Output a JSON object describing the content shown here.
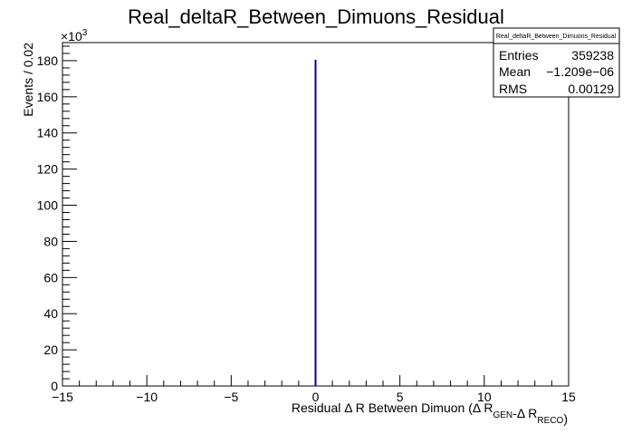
{
  "chart_data": {
    "type": "bar",
    "title": "Real_deltaR_Between_Dimuons_Residual",
    "xlabel": {
      "parts": [
        {
          "t": "Residual ",
          "s": "n"
        },
        {
          "t": "Δ",
          "s": "n"
        },
        {
          "t": " R Between Dimuon (",
          "s": "n"
        },
        {
          "t": "Δ",
          "s": "n"
        },
        {
          "t": " R",
          "s": "n"
        },
        {
          "t": "GEN",
          "s": "sub"
        },
        {
          "t": "-",
          "s": "n"
        },
        {
          "t": "Δ",
          "s": "n"
        },
        {
          "t": " R",
          "s": "n"
        },
        {
          "t": "RECO",
          "s": "sub"
        },
        {
          "t": ")",
          "s": "n"
        }
      ]
    },
    "ylabel": "Events / 0.02",
    "y_multiplier": {
      "base": "×10",
      "exp": "3"
    },
    "xlim": [
      -15,
      15
    ],
    "ylim": [
      0,
      190
    ],
    "x_ticks": [
      -15,
      -10,
      -5,
      0,
      5,
      10,
      15
    ],
    "x_tick_labels": [
      "−15",
      "−10",
      "−5",
      "0",
      "5",
      "10",
      "15"
    ],
    "y_ticks": [
      0,
      20,
      40,
      60,
      80,
      100,
      120,
      140,
      160,
      180
    ],
    "y_tick_labels": [
      "0",
      "20",
      "40",
      "60",
      "80",
      "100",
      "120",
      "140",
      "160",
      "180"
    ],
    "bin_width": 0.02,
    "series": [
      {
        "x": [
          0.0
        ],
        "values": [
          180.5
        ]
      }
    ],
    "line_color": "#000099",
    "grid": false,
    "stats_box": {
      "position": "top-right",
      "title": "Real_deltaR_Between_Dimuons_Residual",
      "rows": [
        {
          "label": "Entries",
          "value": "359238"
        },
        {
          "label": "Mean",
          "value": "−1.209e−06"
        },
        {
          "label": "RMS",
          "value": "0.00129"
        }
      ]
    }
  }
}
